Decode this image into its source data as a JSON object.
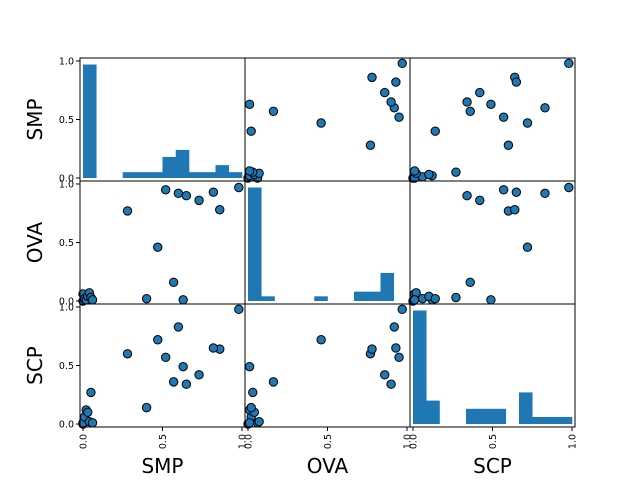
{
  "chart_data": {
    "type": "scatter-matrix",
    "variables": [
      "SMP",
      "OVA",
      "SCP"
    ],
    "tick_labels": [
      "0.0",
      "0.5",
      "1.0"
    ],
    "ylim": [
      0,
      1
    ],
    "xlim": [
      0,
      1
    ],
    "color": "#1f77b4",
    "points": {
      "SMP": [
        0.0,
        0.0,
        0.01,
        0.02,
        0.03,
        0.04,
        0.05,
        0.06,
        0.4,
        0.6,
        0.28,
        0.47,
        0.86,
        0.52,
        0.57,
        0.63,
        0.65,
        0.73,
        0.82,
        0.98
      ],
      "OVA": [
        0.0,
        0.06,
        0.02,
        0.01,
        0.04,
        0.07,
        0.03,
        0.01,
        0.02,
        0.92,
        0.77,
        0.46,
        0.78,
        0.95,
        0.16,
        0.01,
        0.9,
        0.86,
        0.93,
        0.97
      ],
      "SCP": [
        0.0,
        0.01,
        0.06,
        0.12,
        0.1,
        0.02,
        0.27,
        0.01,
        0.14,
        0.83,
        0.6,
        0.72,
        0.64,
        0.57,
        0.36,
        0.49,
        0.34,
        0.42,
        0.65,
        0.98
      ]
    },
    "histograms": {
      "SMP": [
        0.97,
        0.0,
        0.0,
        0.05,
        0.05,
        0.05,
        0.18,
        0.24,
        0.05,
        0.05,
        0.11,
        0.05
      ],
      "OVA": [
        0.97,
        0.04,
        0.0,
        0.0,
        0.0,
        0.04,
        0.0,
        0.0,
        0.08,
        0.08,
        0.24,
        0.0
      ],
      "SCP": [
        0.97,
        0.2,
        0.0,
        0.0,
        0.13,
        0.13,
        0.13,
        0.0,
        0.27,
        0.06,
        0.06,
        0.06
      ]
    }
  }
}
